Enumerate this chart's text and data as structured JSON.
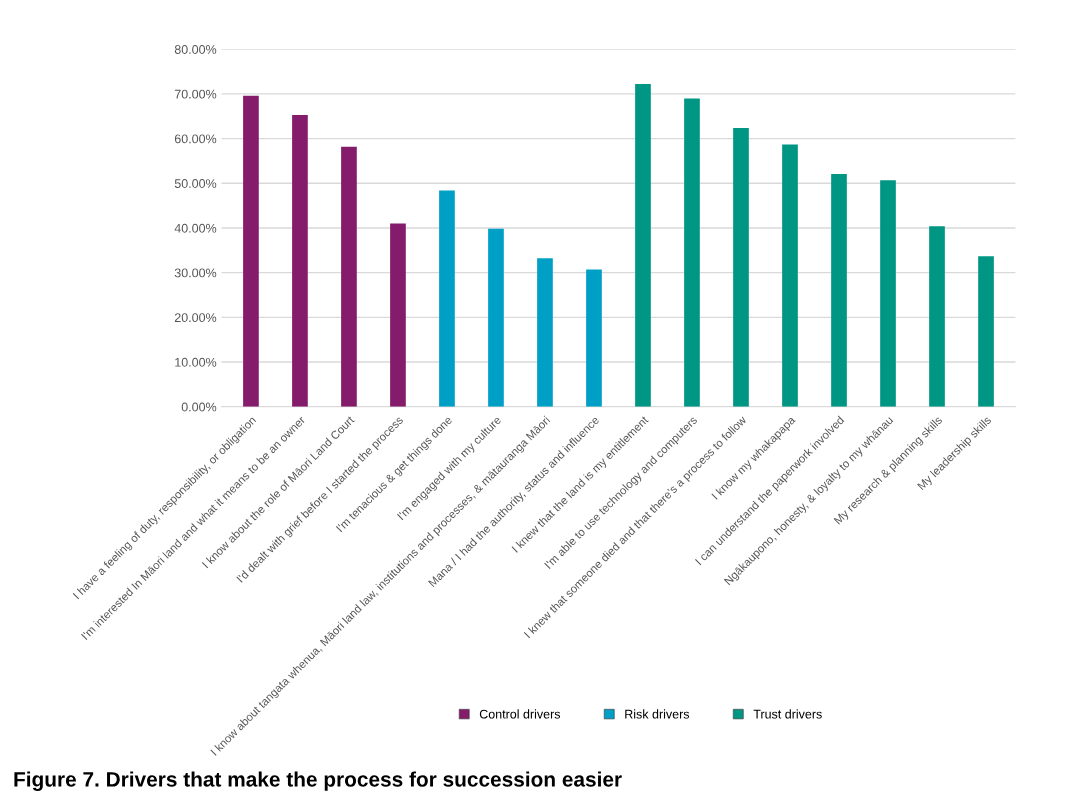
{
  "chart_data": {
    "type": "bar",
    "title": "Figure 7. Drivers that make the process for succession easier",
    "categories": [
      "I have a feeling of duty, responsibility, or obligation",
      "I'm interested In Māori land and what it means to be an owner",
      "I know about the role of Māori Land Court",
      "I'd dealt with grief before I started the process",
      "I'm tenacious & get things done",
      "I'm engaged with my culture",
      "I know about tangata whenua, Māori land law, institutions and processes, & mātauranga Māori",
      "Mana / I had the authority, status and influence",
      "I knew that the land is my entitlement",
      "I'm able to use technology and computers",
      "I knew that someone died and that there's a process to follow",
      "I know my whakapapa",
      "I can understand the paperwork involved",
      "Ngākaupono, honesty, & loyalty to my whānau",
      "My research & planning skills",
      "My leadership skills"
    ],
    "series": [
      {
        "name": "Control drivers",
        "color": "#841c6b",
        "values": [
          69.6,
          65.3,
          58.2,
          41.0,
          null,
          null,
          null,
          null,
          null,
          null,
          null,
          null,
          null,
          null,
          null,
          null
        ]
      },
      {
        "name": "Risk drivers",
        "color": "#009fc6",
        "values": [
          null,
          null,
          null,
          null,
          48.4,
          39.8,
          33.2,
          30.7,
          null,
          null,
          null,
          null,
          null,
          null,
          null,
          null
        ]
      },
      {
        "name": "Trust drivers",
        "color": "#009684",
        "values": [
          null,
          null,
          null,
          null,
          null,
          null,
          null,
          null,
          72.2,
          69.0,
          62.4,
          58.7,
          52.1,
          50.7,
          40.4,
          33.7
        ]
      }
    ],
    "ylim": [
      0,
      80
    ],
    "yticks": [
      {
        "value": 0,
        "label": "0.00%"
      },
      {
        "value": 10,
        "label": "10.00%"
      },
      {
        "value": 20,
        "label": "20.00%"
      },
      {
        "value": 30,
        "label": "30.00%"
      },
      {
        "value": 40,
        "label": "40.00%"
      },
      {
        "value": 50,
        "label": "50.00%"
      },
      {
        "value": 60,
        "label": "60.00%"
      },
      {
        "value": 70,
        "label": "70.00%"
      },
      {
        "value": 80,
        "label": "80.00%"
      }
    ],
    "grid": "y",
    "legend": "bottom"
  }
}
